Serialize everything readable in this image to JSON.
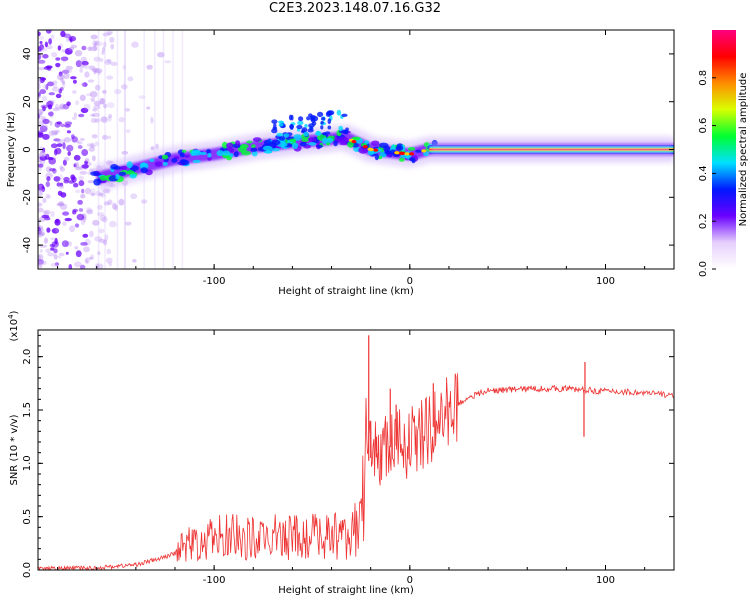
{
  "title": "C2E3.2023.148.07.16.G32",
  "chart_data": [
    {
      "type": "heatmap",
      "name": "spectrogram",
      "xlabel": "Height of straight line (km)",
      "ylabel": "Frequency (Hz)",
      "xlim": [
        -190,
        135
      ],
      "ylim": [
        -50,
        50
      ],
      "xticks": [
        -100,
        0,
        100
      ],
      "yticks": [
        -40,
        -20,
        0,
        20,
        40
      ],
      "ridge": [
        [
          -160,
          -12
        ],
        [
          -140,
          -8
        ],
        [
          -120,
          -4
        ],
        [
          -100,
          -2
        ],
        [
          -80,
          1
        ],
        [
          -60,
          3
        ],
        [
          -45,
          4
        ],
        [
          -33,
          5
        ],
        [
          -25,
          2
        ],
        [
          -20,
          0
        ],
        [
          -10,
          -1
        ],
        [
          0,
          -2
        ],
        [
          10,
          0
        ],
        [
          20,
          0
        ],
        [
          135,
          0
        ]
      ],
      "colorbar": {
        "label": "Normalized spectral amplitude",
        "ticks": [
          0.0,
          0.2,
          0.4,
          0.6,
          0.8
        ],
        "tick_labels": [
          "0.0",
          "0.2",
          "0.4",
          "0.6",
          "0.8"
        ],
        "colors": [
          "#ffffff",
          "#e6cffc",
          "#6a00ff",
          "#0018ff",
          "#00e0ff",
          "#00ff30",
          "#d8ff00",
          "#ff8c00",
          "#ff0000",
          "#ff007f"
        ]
      }
    },
    {
      "type": "line",
      "name": "snr",
      "xlabel": "Height of straight line (km)",
      "ylabel": "SNR (10 * v/v)",
      "exponent_label": "(x10",
      "exponent": "4",
      "exponent_close": ")",
      "xlim": [
        -190,
        135
      ],
      "ylim": [
        0,
        2.25
      ],
      "xticks": [
        -100,
        0,
        100
      ],
      "yticks": [
        0.0,
        0.5,
        1.0,
        1.5,
        2.0
      ],
      "ytick_labels": [
        "0.0",
        "0.5",
        "1.0",
        "1.5",
        "2.0"
      ],
      "color": "#ee3333",
      "envelope": [
        [
          -190,
          0.01
        ],
        [
          -160,
          0.02
        ],
        [
          -140,
          0.05
        ],
        [
          -125,
          0.12
        ],
        [
          -110,
          0.25
        ],
        [
          -95,
          0.3
        ],
        [
          -80,
          0.28
        ],
        [
          -60,
          0.3
        ],
        [
          -45,
          0.3
        ],
        [
          -30,
          0.32
        ],
        [
          -25,
          0.4
        ],
        [
          -22,
          1.0
        ],
        [
          -18,
          1.1
        ],
        [
          -10,
          1.15
        ],
        [
          0,
          1.2
        ],
        [
          10,
          1.3
        ],
        [
          20,
          1.5
        ],
        [
          30,
          1.62
        ],
        [
          40,
          1.68
        ],
        [
          60,
          1.7
        ],
        [
          80,
          1.7
        ],
        [
          95,
          1.68
        ],
        [
          110,
          1.67
        ],
        [
          135,
          1.64
        ]
      ],
      "spikes": [
        [
          -21,
          2.2
        ],
        [
          -20,
          1.4
        ],
        [
          -17,
          1.25
        ],
        [
          -10,
          1.7
        ],
        [
          -7,
          1.55
        ],
        [
          12,
          1.75
        ],
        [
          89,
          1.25
        ],
        [
          89.5,
          1.95
        ]
      ]
    }
  ]
}
